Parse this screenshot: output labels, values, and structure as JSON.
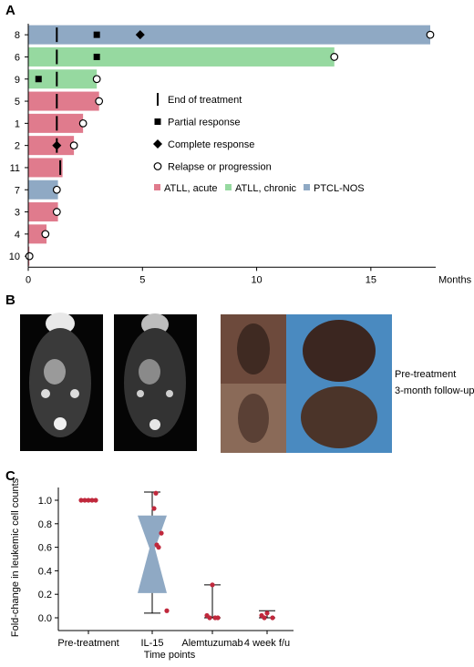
{
  "panels": {
    "a": "A",
    "b": "B",
    "c": "C"
  },
  "chart_data": [
    {
      "type": "bar",
      "orientation": "horizontal",
      "x_unit_label": "Months",
      "xlim": [
        0,
        17.6
      ],
      "x_ticks": [
        0,
        5,
        10,
        15
      ],
      "categories": [
        "8",
        "6",
        "9",
        "5",
        "1",
        "2",
        "11",
        "7",
        "3",
        "4",
        "10"
      ],
      "values": [
        17.6,
        13.4,
        3.0,
        3.1,
        2.4,
        2.0,
        1.5,
        1.3,
        1.3,
        0.8,
        0.05
      ],
      "disease": [
        "PTCL-NOS",
        "ATLL, chronic",
        "ATLL, chronic",
        "ATLL, acute",
        "ATLL, acute",
        "ATLL, acute",
        "ATLL, acute",
        "PTCL-NOS",
        "ATLL, acute",
        "ATLL, acute",
        "ATLL, acute"
      ],
      "end_of_treatment": [
        1.25,
        1.25,
        1.25,
        1.25,
        1.25,
        1.25,
        1.4,
        null,
        null,
        null,
        null
      ],
      "partial_response": [
        3.0,
        3.0,
        0.45,
        null,
        null,
        null,
        null,
        null,
        null,
        null,
        null
      ],
      "complete_response": [
        4.9,
        null,
        null,
        null,
        null,
        1.25,
        null,
        null,
        null,
        null,
        null
      ],
      "relapse_or_progression": [
        17.6,
        13.4,
        3.0,
        3.1,
        2.4,
        2.0,
        null,
        1.25,
        1.25,
        0.75,
        0.05
      ],
      "legend": {
        "markers": [
          "End of treatment",
          "Partial response",
          "Complete response",
          "Relapse or progression"
        ],
        "colors": [
          "ATLL, acute",
          "ATLL, chronic",
          "PTCL-NOS"
        ]
      },
      "colors": {
        "ATLL, acute": "#e07b8d",
        "ATLL, chronic": "#96d9a0",
        "PTCL-NOS": "#8fa9c4"
      }
    },
    {
      "type": "box",
      "xlabel": "Time points",
      "ylabel": "Fold-change in leukemic cell counts",
      "ylim": [
        -0.05,
        1.12
      ],
      "y_ticks": [
        "0.0",
        "0.2",
        "0.4",
        "0.6",
        "0.8",
        "1.0"
      ],
      "categories": [
        "Pre-treatment",
        "IL-15",
        "Alemtuzumab",
        "4 week f/u"
      ],
      "points": [
        [
          1.0,
          1.0,
          1.0,
          1.0,
          1.0
        ],
        [
          1.06,
          0.93,
          0.72,
          0.62,
          0.6,
          0.06
        ],
        [
          0.28,
          0.02,
          0.0,
          0.0,
          0.0
        ],
        [
          0.04,
          0.02,
          0.0,
          0.0
        ]
      ],
      "whisker_low": [
        null,
        0.04,
        0.0,
        0.0
      ],
      "whisker_high": [
        null,
        1.07,
        0.28,
        0.06
      ],
      "box_q1": [
        null,
        0.21,
        null,
        null
      ],
      "box_median": [
        null,
        0.59,
        null,
        null
      ],
      "box_q3": [
        null,
        0.87,
        null,
        null
      ],
      "point_color": "#c0283c",
      "box_color": "#8fa9c4"
    }
  ],
  "photo_labels": {
    "pre": "Pre-treatment",
    "post": "3-month follow-up"
  }
}
